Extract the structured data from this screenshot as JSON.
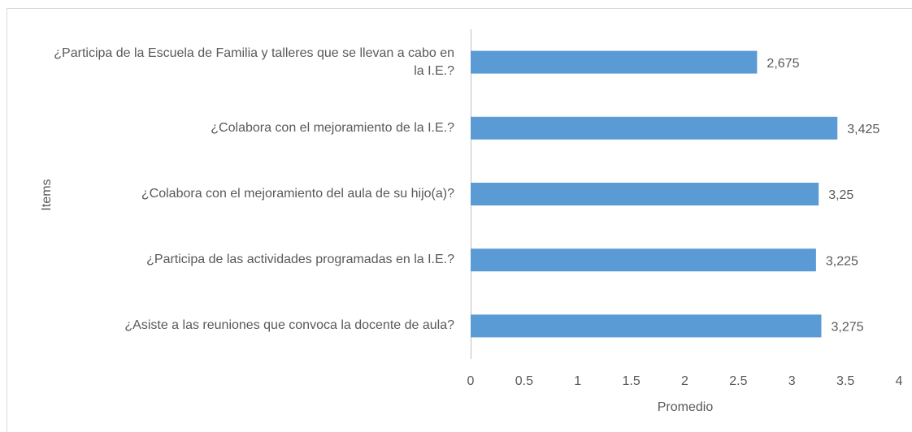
{
  "chart_data": {
    "type": "bar",
    "orientation": "horizontal",
    "x_label": "Promedio",
    "y_label": "Items",
    "categories": [
      "¿Participa de la Escuela de Familia y talleres que se llevan a cabo en la        I.E.?",
      "¿Colabora con el mejoramiento de la I.E.?",
      "¿Colabora con el mejoramiento del aula de su hijo(a)?",
      "¿Participa de las actividades programadas en la I.E.?",
      "¿Asiste a las reuniones que convoca la docente de aula?"
    ],
    "values": [
      2.675,
      3.425,
      3.25,
      3.225,
      3.275
    ],
    "value_labels": [
      "2,675",
      "3,425",
      "3,25",
      "3,225",
      "3,275"
    ],
    "color": "#5b9bd5",
    "xlim": [
      0,
      4
    ],
    "xticks": [
      0,
      0.5,
      1,
      1.5,
      2,
      2.5,
      3,
      3.5,
      4
    ],
    "grid": false
  }
}
